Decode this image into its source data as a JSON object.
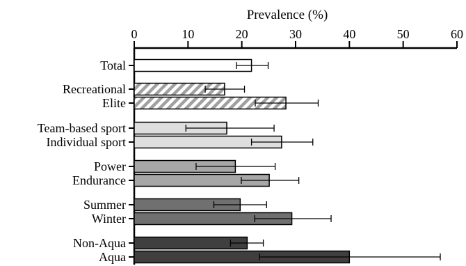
{
  "chart_data": {
    "type": "bar",
    "orientation": "horizontal",
    "title": "Prevalence (%)",
    "xlabel": "Prevalence (%)",
    "ylabel": "",
    "xlim": [
      0,
      60
    ],
    "x_ticks": [
      "0",
      "10",
      "20",
      "30",
      "40",
      "50",
      "60"
    ],
    "axis_position": "top",
    "grid": false,
    "legend": "none",
    "categories": [
      "Total",
      "Recreational",
      "Elite",
      "Team-based sport",
      "Individual sport",
      "Power",
      "Endurance",
      "Summer",
      "Winter",
      "Non-Aqua",
      "Aqua"
    ],
    "values": [
      21.8,
      16.8,
      28.2,
      17.2,
      27.4,
      18.8,
      25.1,
      19.7,
      29.3,
      21.0,
      40.0
    ],
    "error_low": [
      19.0,
      13.2,
      22.5,
      9.6,
      21.8,
      11.5,
      19.9,
      14.8,
      22.4,
      17.9,
      23.3
    ],
    "error_high": [
      24.9,
      20.5,
      34.2,
      26.0,
      33.2,
      26.2,
      30.6,
      24.6,
      36.6,
      24.0,
      56.9
    ],
    "bar_fills": [
      "#ffffff",
      "hatch",
      "hatch",
      "#dedede",
      "#dedede",
      "#a7a7a7",
      "#a7a7a7",
      "#707070",
      "#707070",
      "#3f3f3f",
      "#3f3f3f"
    ],
    "bar_stroke": "#000000"
  }
}
